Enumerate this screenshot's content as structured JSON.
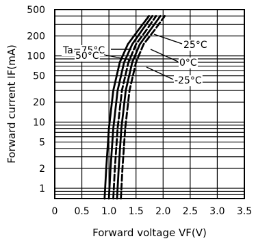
{
  "chart_data": {
    "type": "line",
    "xlabel": "Forward voltage VF(V)",
    "ylabel": "Forward current IF(mA)",
    "xlim": [
      0,
      3.5
    ],
    "ylim": [
      0.7,
      500
    ],
    "yscale": "log",
    "x_ticks": [
      "0",
      "0.5",
      "1.0",
      "1.5",
      "2.0",
      "2.5",
      "3.0",
      "3.5"
    ],
    "y_ticks": [
      {
        "value": 1,
        "label": "1"
      },
      {
        "value": 2,
        "label": "2"
      },
      {
        "value": 5,
        "label": "5"
      },
      {
        "value": 10,
        "label": "10"
      },
      {
        "value": 20,
        "label": "20"
      },
      {
        "value": 50,
        "label": "50"
      },
      {
        "value": 100,
        "label": "100"
      },
      {
        "value": 200,
        "label": "200"
      },
      {
        "value": 500,
        "label": "500"
      }
    ],
    "grid": true,
    "series": [
      {
        "name": "Ta=75°C",
        "style": "solid",
        "points": [
          [
            0.92,
            0.7
          ],
          [
            0.95,
            2
          ],
          [
            1.0,
            8
          ],
          [
            1.08,
            30
          ],
          [
            1.2,
            80
          ],
          [
            1.35,
            150
          ],
          [
            1.55,
            250
          ],
          [
            1.74,
            400
          ]
        ]
      },
      {
        "name": "50°C",
        "style": "solid",
        "points": [
          [
            1.0,
            0.7
          ],
          [
            1.03,
            2
          ],
          [
            1.08,
            8
          ],
          [
            1.16,
            30
          ],
          [
            1.28,
            80
          ],
          [
            1.43,
            150
          ],
          [
            1.62,
            250
          ],
          [
            1.8,
            400
          ]
        ]
      },
      {
        "name": "25°C",
        "style": "dashed",
        "points": [
          [
            1.08,
            0.7
          ],
          [
            1.11,
            2
          ],
          [
            1.16,
            8
          ],
          [
            1.24,
            30
          ],
          [
            1.36,
            80
          ],
          [
            1.5,
            150
          ],
          [
            1.7,
            250
          ],
          [
            1.87,
            400
          ]
        ]
      },
      {
        "name": "0°C",
        "style": "solid",
        "points": [
          [
            1.15,
            0.7
          ],
          [
            1.18,
            2
          ],
          [
            1.23,
            8
          ],
          [
            1.31,
            30
          ],
          [
            1.43,
            80
          ],
          [
            1.57,
            150
          ],
          [
            1.77,
            250
          ],
          [
            1.95,
            400
          ]
        ]
      },
      {
        "name": "-25°C",
        "style": "dashed",
        "points": [
          [
            1.22,
            0.7
          ],
          [
            1.25,
            2
          ],
          [
            1.3,
            8
          ],
          [
            1.38,
            30
          ],
          [
            1.5,
            80
          ],
          [
            1.64,
            150
          ],
          [
            1.85,
            250
          ],
          [
            2.03,
            400
          ]
        ]
      }
    ],
    "annotations": [
      {
        "text": "Ta=75°C",
        "series": 0
      },
      {
        "text": "50°C",
        "series": 1
      },
      {
        "text": "25°C",
        "series": 2
      },
      {
        "text": "0°C",
        "series": 3
      },
      {
        "text": "-25°C",
        "series": 4
      }
    ]
  }
}
